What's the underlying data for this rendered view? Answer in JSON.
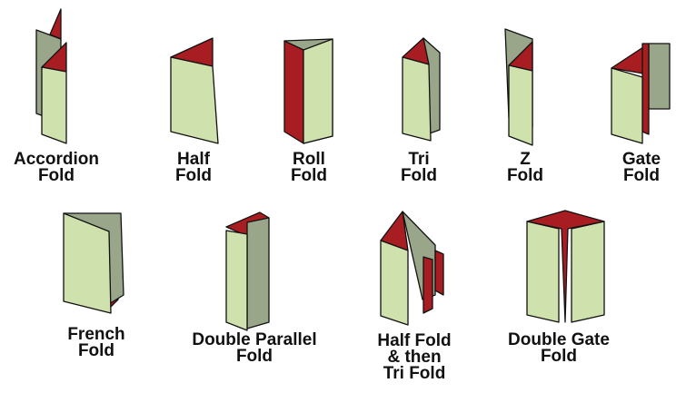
{
  "colors": {
    "panel": "#cfe2ad",
    "panel_shade": "#9aa68a",
    "accent": "#a81d22",
    "outline": "#111111"
  },
  "folds": [
    {
      "id": "accordion",
      "lines": [
        "Accordion",
        "Fold"
      ]
    },
    {
      "id": "half",
      "lines": [
        "Half",
        "Fold"
      ]
    },
    {
      "id": "roll",
      "lines": [
        "Roll",
        "Fold"
      ]
    },
    {
      "id": "tri",
      "lines": [
        "Tri",
        "Fold"
      ]
    },
    {
      "id": "z",
      "lines": [
        "Z",
        "Fold"
      ]
    },
    {
      "id": "gate",
      "lines": [
        "Gate",
        "Fold"
      ]
    },
    {
      "id": "french",
      "lines": [
        "French",
        "Fold"
      ]
    },
    {
      "id": "double-parallel",
      "lines": [
        "Double Parallel",
        "Fold"
      ]
    },
    {
      "id": "half-then-tri",
      "lines": [
        "Half Fold",
        "& then",
        "Tri Fold"
      ]
    },
    {
      "id": "double-gate",
      "lines": [
        "Double Gate",
        "Fold"
      ]
    }
  ]
}
